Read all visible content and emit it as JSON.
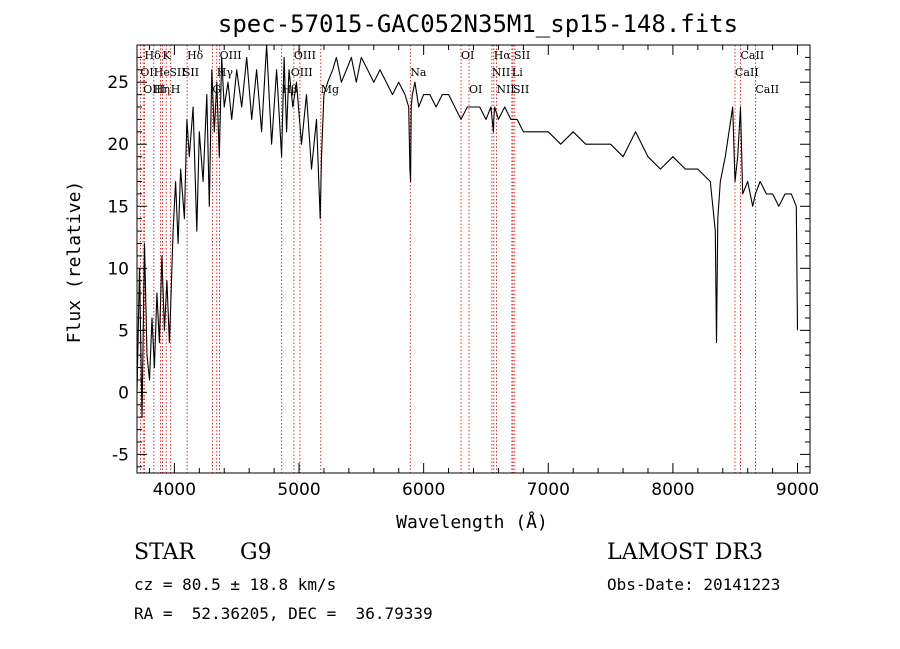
{
  "chart_data": {
    "type": "line",
    "title": "spec-57015-GAC052N35M1_sp15-148.fits",
    "xlabel": "Wavelength (Å)",
    "ylabel": "Flux (relative)",
    "xlim": [
      3700,
      9100
    ],
    "ylim": [
      -6.5,
      28
    ],
    "x_ticks": [
      4000,
      5000,
      6000,
      7000,
      8000,
      9000
    ],
    "y_ticks": [
      -5,
      0,
      5,
      10,
      15,
      20,
      25
    ],
    "spectrum": {
      "x": [
        3700,
        3720,
        3740,
        3760,
        3780,
        3800,
        3820,
        3840,
        3860,
        3880,
        3900,
        3920,
        3940,
        3960,
        3970,
        3990,
        4010,
        4030,
        4050,
        4080,
        4100,
        4120,
        4150,
        4180,
        4200,
        4230,
        4260,
        4280,
        4300,
        4320,
        4340,
        4360,
        4380,
        4400,
        4430,
        4460,
        4500,
        4540,
        4580,
        4620,
        4660,
        4700,
        4740,
        4780,
        4820,
        4860,
        4880,
        4900,
        4920,
        4950,
        4980,
        5020,
        5060,
        5100,
        5140,
        5170,
        5180,
        5200,
        5230,
        5270,
        5300,
        5340,
        5380,
        5420,
        5460,
        5500,
        5550,
        5600,
        5650,
        5700,
        5750,
        5800,
        5850,
        5880,
        5890,
        5895,
        5900,
        5910,
        5930,
        5960,
        6000,
        6050,
        6100,
        6150,
        6200,
        6250,
        6300,
        6350,
        6400,
        6450,
        6500,
        6540,
        6560,
        6563,
        6570,
        6600,
        6650,
        6700,
        6750,
        6800,
        6900,
        7000,
        7100,
        7200,
        7300,
        7400,
        7500,
        7600,
        7700,
        7800,
        7900,
        8000,
        8100,
        8200,
        8300,
        8340,
        8350,
        8360,
        8380,
        8420,
        8450,
        8480,
        8498,
        8520,
        8542,
        8560,
        8600,
        8640,
        8662,
        8700,
        8750,
        8800,
        8850,
        8900,
        8950,
        8990,
        9000
      ],
      "y": [
        0,
        10,
        -2,
        12,
        3,
        1,
        6,
        2,
        8,
        4,
        11,
        5,
        9,
        4,
        7,
        13,
        17,
        12,
        18,
        14,
        22,
        19,
        23,
        13,
        21,
        17,
        24,
        15,
        26,
        21,
        25,
        19,
        27,
        23,
        25,
        22,
        26,
        23,
        27,
        22,
        26,
        21,
        28,
        20,
        26,
        19,
        27,
        21,
        26,
        23,
        25,
        20,
        24,
        18,
        22,
        14,
        19,
        24,
        25,
        26,
        27,
        25,
        26,
        27,
        25,
        27,
        26,
        25,
        26,
        25,
        24,
        25,
        24,
        23,
        18,
        17,
        23,
        24,
        25,
        23,
        24,
        24,
        23,
        24,
        24,
        23,
        22,
        23,
        23,
        23,
        22,
        23,
        21,
        22,
        23,
        22,
        23,
        22,
        22,
        21,
        21,
        21,
        20,
        21,
        20,
        20,
        20,
        19,
        21,
        19,
        18,
        19,
        18,
        18,
        17,
        13,
        4,
        14,
        17,
        19,
        21,
        23,
        17,
        19,
        23,
        16,
        17,
        15,
        16,
        17,
        16,
        16,
        15,
        16,
        16,
        15,
        5
      ]
    },
    "lines_bottom_row": [
      {
        "label": "Hδ",
        "x": 3760
      },
      {
        "label": "K",
        "x": 3905
      },
      {
        "label": "Hδ",
        "x": 4102
      },
      {
        "label": "OIII",
        "x": 4363
      },
      {
        "label": "OIII",
        "x": 4959
      },
      {
        "label": "OI",
        "x": 6300
      },
      {
        "label": "Hα",
        "x": 6563
      },
      {
        "label": "SII",
        "x": 6725
      },
      {
        "label": "CaII",
        "x": 8542
      }
    ],
    "lines_middle_row": [
      {
        "label": "OII",
        "x": 3727
      },
      {
        "label": "He",
        "x": 3835
      },
      {
        "label": "SII",
        "x": 3960
      },
      {
        "label": "SII",
        "x": 4068
      },
      {
        "label": "Hγ",
        "x": 4340
      },
      {
        "label": "OIII",
        "x": 4933
      },
      {
        "label": "Na",
        "x": 5893
      },
      {
        "label": "NII",
        "x": 6548
      },
      {
        "label": "Li",
        "x": 6708
      },
      {
        "label": "CaII",
        "x": 8498
      }
    ],
    "lines_top_row": [
      {
        "label": "OIII",
        "x": 3750
      },
      {
        "label": "Hη",
        "x": 3835
      },
      {
        "label": "H",
        "x": 3970
      },
      {
        "label": "G",
        "x": 4305
      },
      {
        "label": "Hβ",
        "x": 4861
      },
      {
        "label": "Mg",
        "x": 5175
      },
      {
        "label": "OI",
        "x": 6364
      },
      {
        "label": "NII",
        "x": 6584
      },
      {
        "label": "SII",
        "x": 6717
      },
      {
        "label": "CaII",
        "x": 8662
      }
    ],
    "line_marker_x": [
      3727,
      3750,
      3760,
      3835,
      3889,
      3905,
      3934,
      3970,
      4102,
      4305,
      4340,
      4363,
      4861,
      4959,
      5007,
      5175,
      5893,
      6300,
      6364,
      6548,
      6563,
      6584,
      6708,
      6717,
      6731,
      8498,
      8542,
      8662
    ]
  },
  "info": {
    "object_type": "STAR",
    "subclass": "G9",
    "survey": "LAMOST DR3",
    "redshift": "cz = 80.5 ± 18.8 km/s",
    "obs_date": "Obs-Date: 20141223",
    "coords": "RA =  52.36205, DEC =  36.79339"
  },
  "colors": {
    "spectrum": "#000000",
    "line_markers": "#cc0000",
    "axes": "#000000"
  }
}
